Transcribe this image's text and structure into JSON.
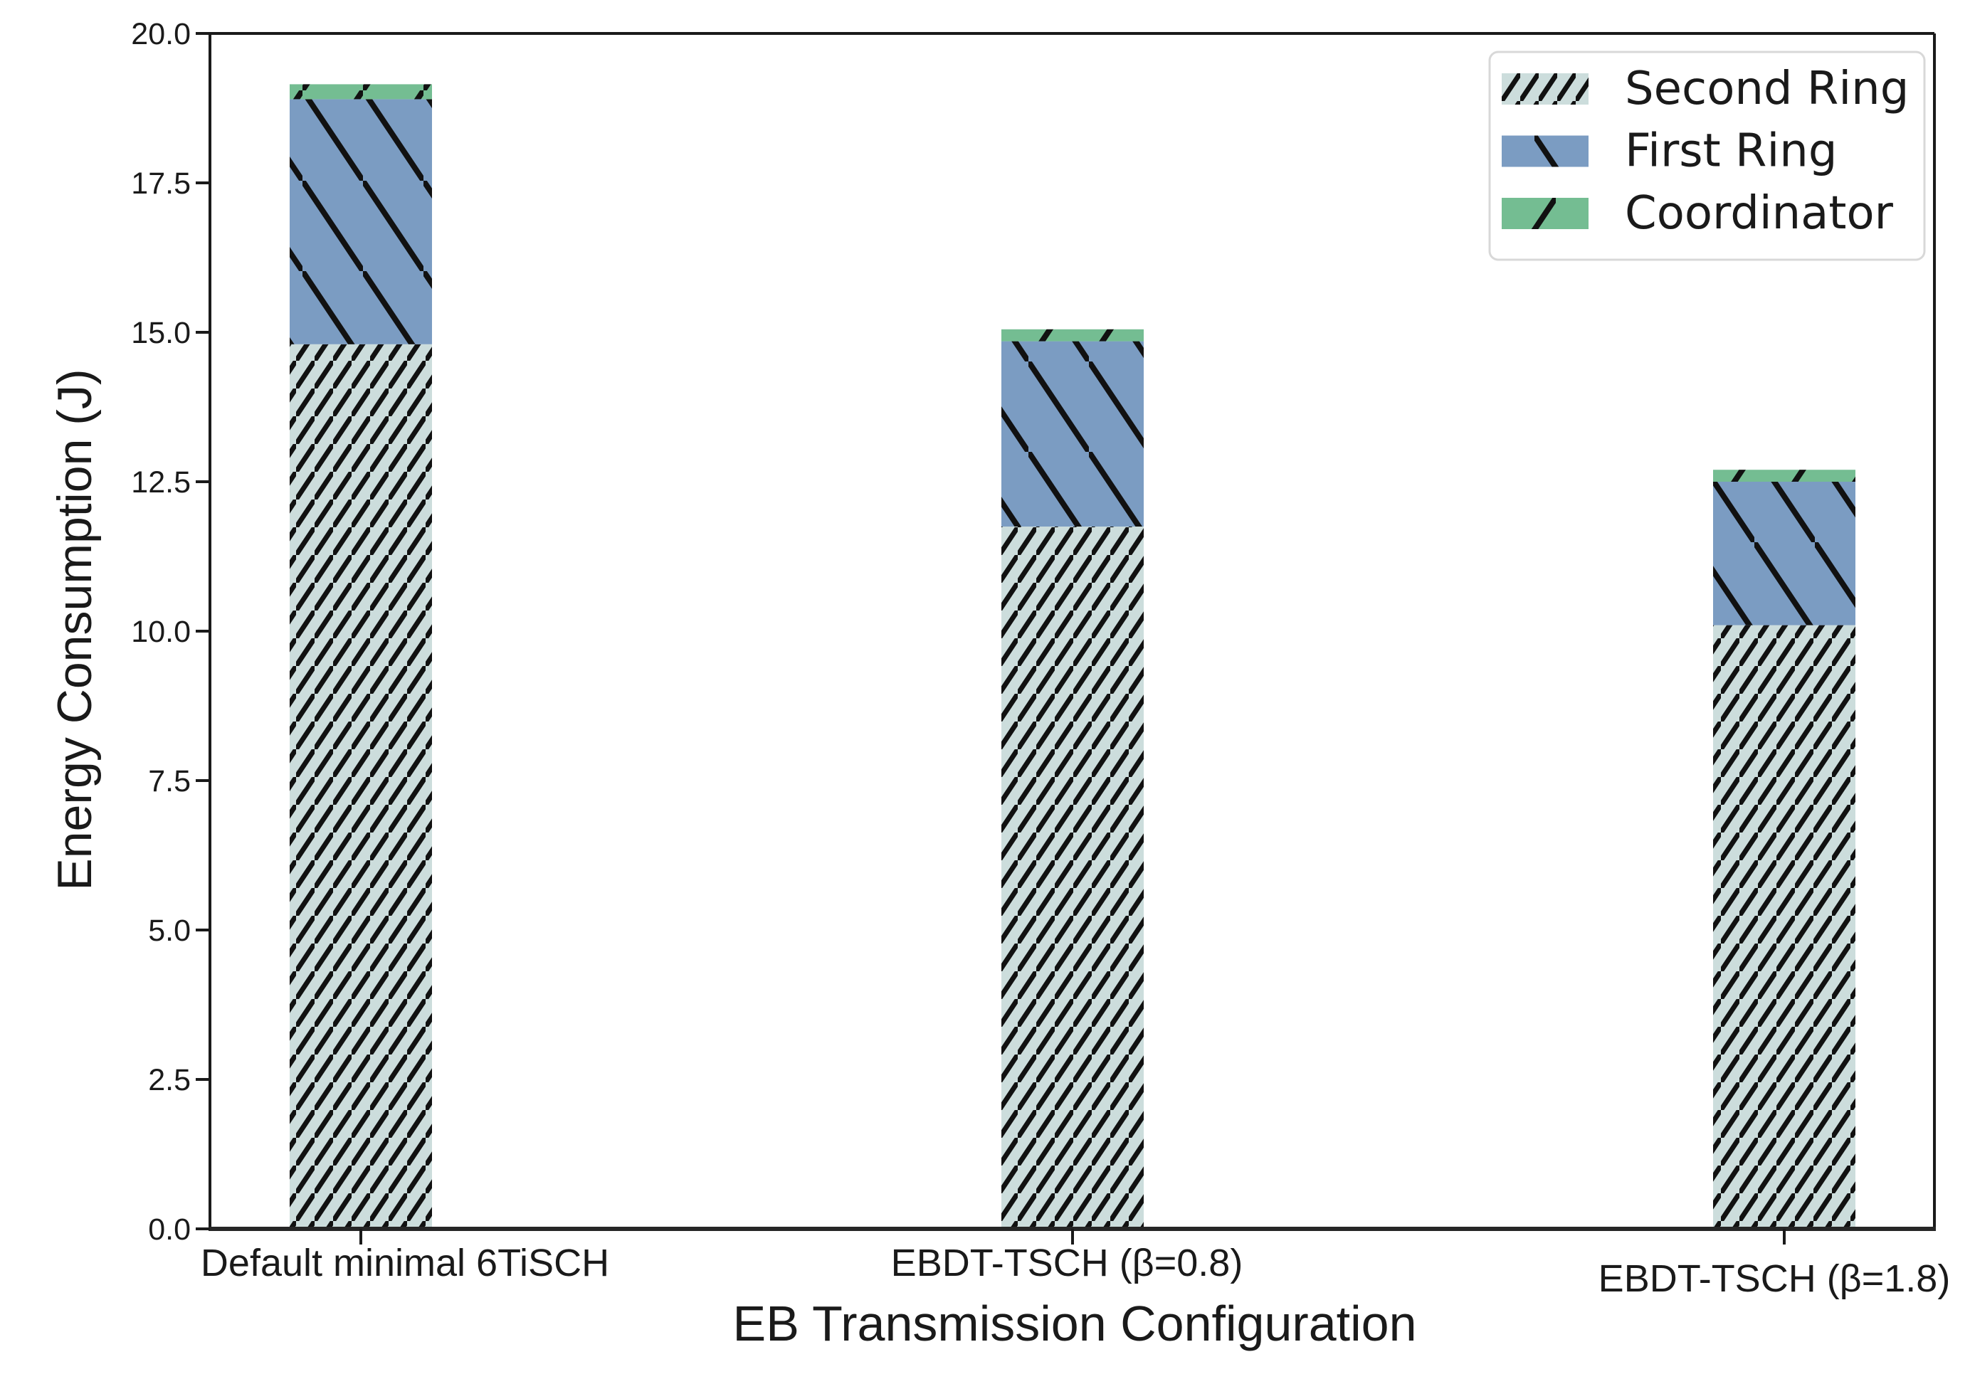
{
  "chart_data": {
    "type": "bar",
    "subtype": "stacked-bar",
    "title": "",
    "xlabel": "EB Transmission Configuration",
    "ylabel": "Energy Consumption (J)",
    "categories": [
      "Default minimal 6TiSCH",
      "EBDT-TSCH (β=0.8)",
      "EBDT-TSCH (β=1.8)"
    ],
    "series": [
      {
        "name": "Second Ring",
        "values": [
          14.8,
          11.75,
          10.1
        ],
        "color": "#ccdddc",
        "hatch": "/",
        "hatch_density": "dense"
      },
      {
        "name": "First Ring",
        "values": [
          4.1,
          3.1,
          2.4
        ],
        "color": "#7b9cc2",
        "hatch": "\\",
        "hatch_density": "sparse"
      },
      {
        "name": "Coordinator",
        "values": [
          0.25,
          0.2,
          0.2
        ],
        "color": "#74bd92",
        "hatch": "/",
        "hatch_density": "sparse"
      }
    ],
    "totals_estimated": [
      19.15,
      15.05,
      12.7
    ],
    "ylim": [
      0,
      20
    ],
    "yticks": [
      "0.0",
      "2.5",
      "5.0",
      "7.5",
      "10.0",
      "12.5",
      "15.0",
      "17.5",
      "20.0"
    ],
    "grid": false,
    "legend_position": "upper-right",
    "hatch_color": "#111111",
    "axis_color": "#1a1a1a"
  }
}
